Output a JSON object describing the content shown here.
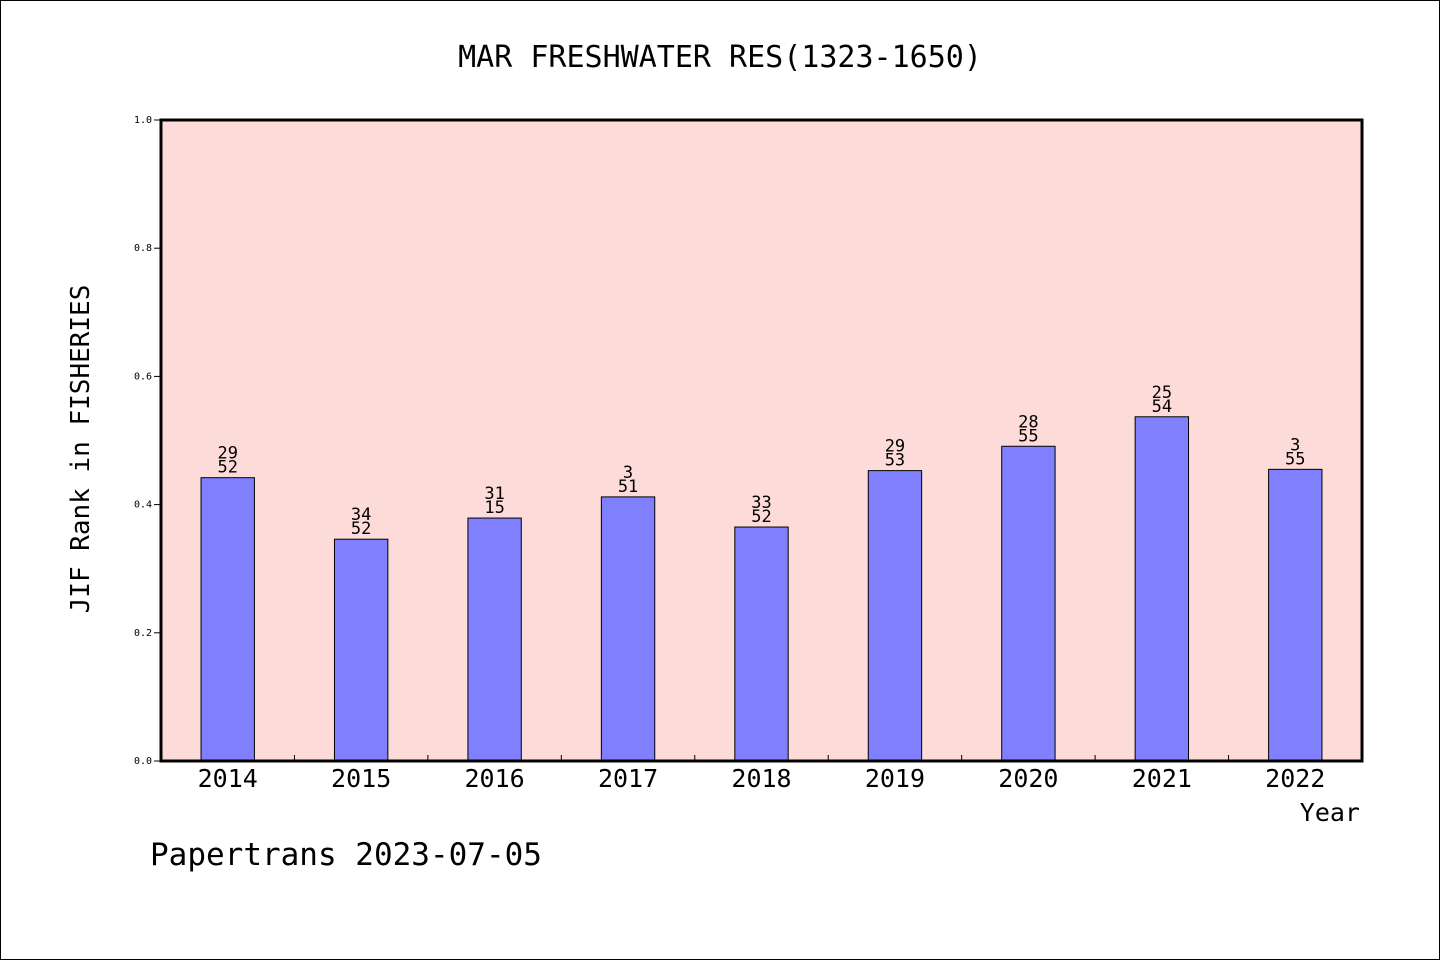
{
  "chart_data": {
    "type": "bar",
    "title": "MAR FRESHWATER RES(1323-1650)",
    "xlabel": "Year",
    "ylabel": "JIF Rank in FISHERIES",
    "ylim": [
      0,
      1.0
    ],
    "yticks": [
      "0.0",
      "0.2",
      "0.4",
      "0.6",
      "0.8",
      "1.0"
    ],
    "ytick_values": [
      0.0,
      0.2,
      0.4,
      0.6,
      0.8,
      1.0
    ],
    "categories": [
      "2014",
      "2015",
      "2016",
      "2017",
      "2018",
      "2019",
      "2020",
      "2021",
      "2022"
    ],
    "values": [
      0.442,
      0.346,
      0.379,
      0.412,
      0.365,
      0.453,
      0.491,
      0.537,
      0.455
    ],
    "label_top": [
      "29",
      "34",
      "31",
      "3",
      "33",
      "29",
      "28",
      "25",
      "3"
    ],
    "label_bottom": [
      "52",
      "52",
      "15",
      "51",
      "52",
      "53",
      "55",
      "54",
      "55"
    ],
    "grid": false,
    "colors": {
      "plot_background": "#fddbd8",
      "bar_fill": "#8080ff",
      "bar_edge": "#000000"
    }
  },
  "footer": {
    "watermark": "Papertrans 2023-07-05"
  }
}
